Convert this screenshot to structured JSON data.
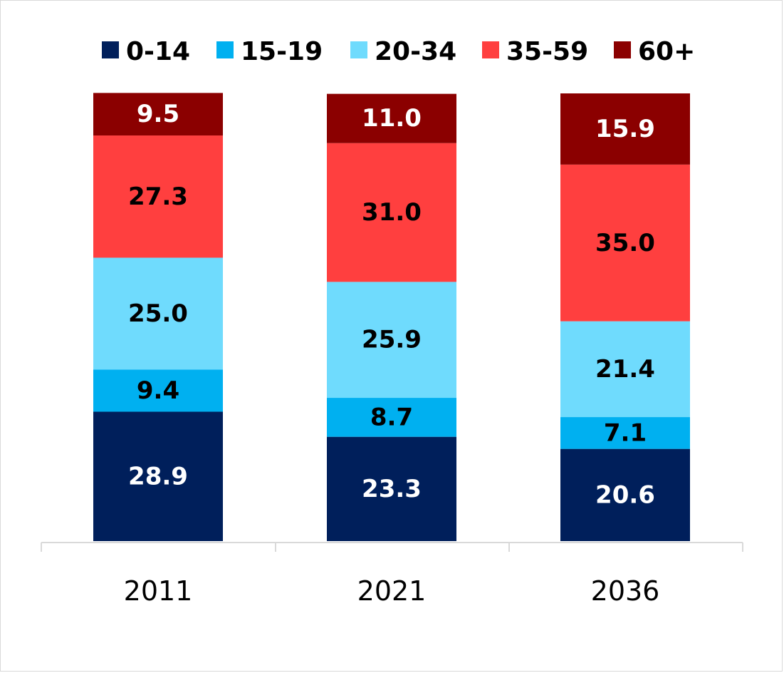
{
  "chart_data": {
    "type": "bar",
    "stacked": true,
    "title": "",
    "xlabel": "",
    "ylabel": "",
    "ylim": [
      0,
      100
    ],
    "grid": false,
    "legend_position": "top",
    "categories": [
      "2011",
      "2021",
      "2036"
    ],
    "series": [
      {
        "name": "0-14",
        "color": "#001f5b",
        "label_color": "#ffffff",
        "values": [
          28.9,
          23.3,
          20.6
        ]
      },
      {
        "name": "15-19",
        "color": "#00b0f0",
        "label_color": "#000000",
        "values": [
          9.4,
          8.7,
          7.1
        ]
      },
      {
        "name": "20-34",
        "color": "#6fdbfd",
        "label_color": "#000000",
        "values": [
          25.0,
          25.9,
          21.4
        ]
      },
      {
        "name": "35-59",
        "color": "#ff3f3f",
        "label_color": "#000000",
        "values": [
          27.3,
          31.0,
          35.0
        ]
      },
      {
        "name": "60+",
        "color": "#8b0000",
        "label_color": "#ffffff",
        "values": [
          9.5,
          11.0,
          15.9
        ]
      }
    ],
    "data_labels": [
      [
        "28.9",
        "23.3",
        "20.6"
      ],
      [
        "9.4",
        "8.7",
        "7.1"
      ],
      [
        "25.0",
        "25.9",
        "21.4"
      ],
      [
        "27.3",
        "31.0",
        "35.0"
      ],
      [
        "9.5",
        "11.0",
        "15.9"
      ]
    ]
  }
}
